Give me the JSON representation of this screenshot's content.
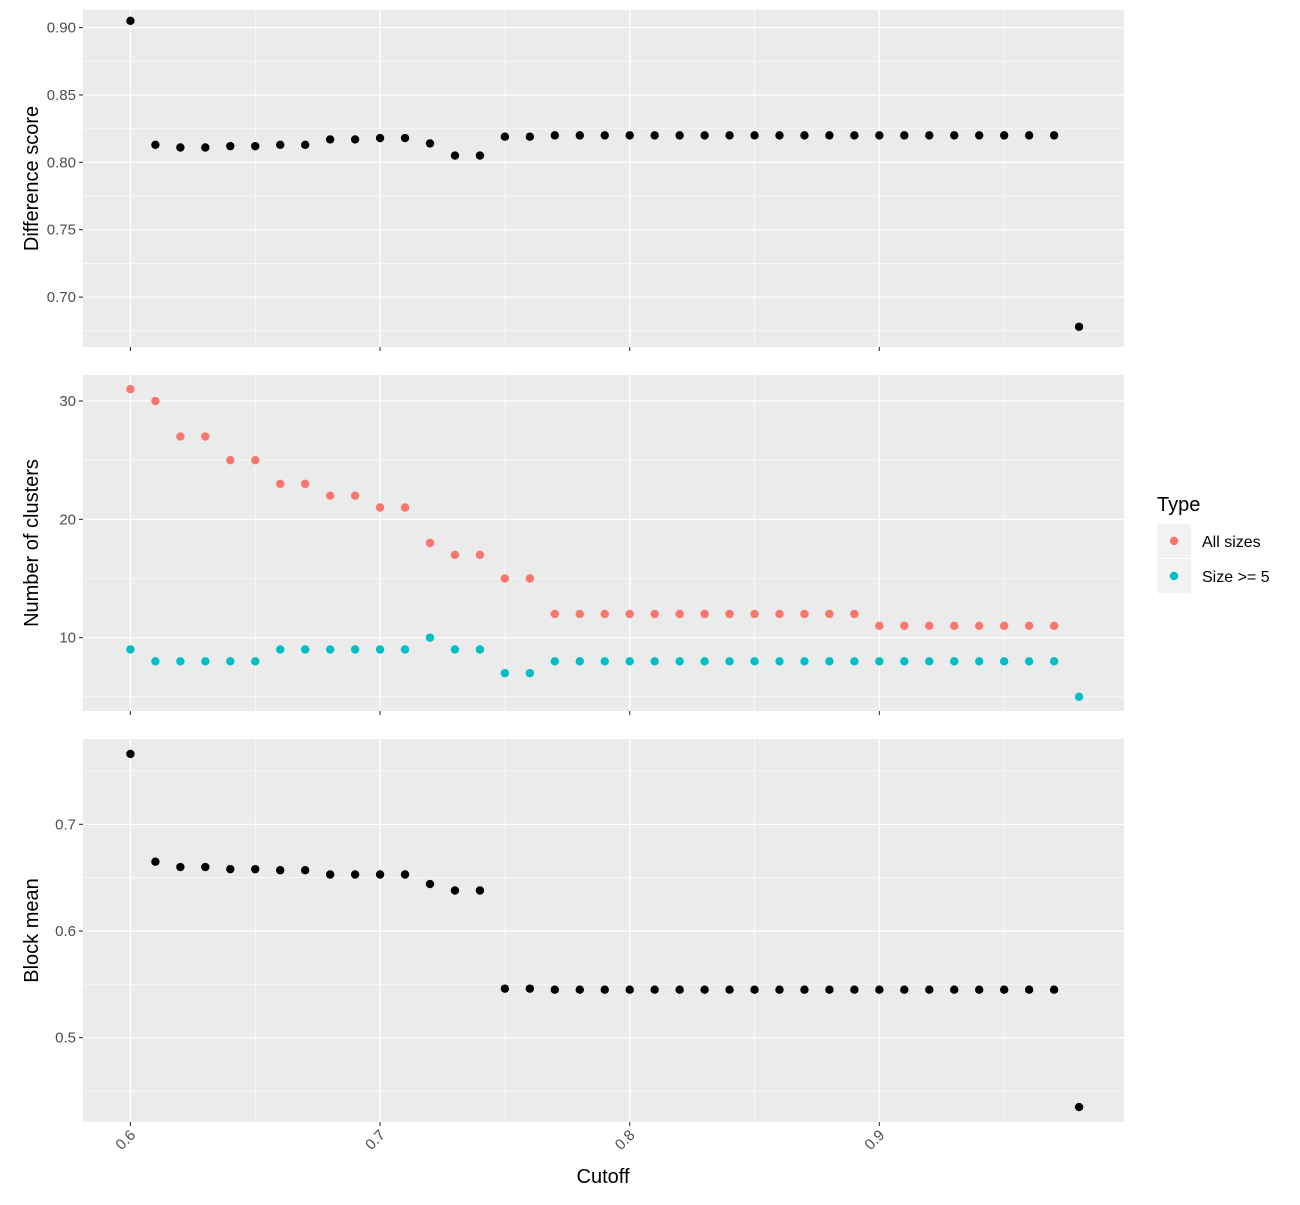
{
  "chart_data": {
    "type": "scatter",
    "layout": "three vertically stacked panels with shared x axis",
    "xlabel": "Cutoff",
    "x_ticks": [
      "0.6",
      "0.7",
      "0.8",
      "0.9"
    ],
    "x_range": [
      0.581,
      0.998
    ],
    "grid": true,
    "legend": {
      "title": "Type",
      "placement": "right",
      "entries": [
        {
          "label": "All sizes",
          "color": "#F8766D"
        },
        {
          "label": "Size >= 5",
          "color": "#00BFC4"
        }
      ]
    },
    "panels": [
      {
        "ylabel": "Difference score",
        "y_ticks": [
          "0.70",
          "0.75",
          "0.80",
          "0.85",
          "0.90"
        ],
        "ylim": [
          0.663,
          0.913
        ],
        "series": [
          {
            "color": "#000000",
            "points": [
              [
                0.6,
                0.905
              ],
              [
                0.61,
                0.813
              ],
              [
                0.62,
                0.811
              ],
              [
                0.63,
                0.811
              ],
              [
                0.64,
                0.812
              ],
              [
                0.65,
                0.812
              ],
              [
                0.66,
                0.813
              ],
              [
                0.67,
                0.813
              ],
              [
                0.68,
                0.817
              ],
              [
                0.69,
                0.817
              ],
              [
                0.7,
                0.818
              ],
              [
                0.71,
                0.818
              ],
              [
                0.72,
                0.814
              ],
              [
                0.73,
                0.805
              ],
              [
                0.74,
                0.805
              ],
              [
                0.75,
                0.819
              ],
              [
                0.76,
                0.819
              ],
              [
                0.77,
                0.82
              ],
              [
                0.78,
                0.82
              ],
              [
                0.79,
                0.82
              ],
              [
                0.8,
                0.82
              ],
              [
                0.81,
                0.82
              ],
              [
                0.82,
                0.82
              ],
              [
                0.83,
                0.82
              ],
              [
                0.84,
                0.82
              ],
              [
                0.85,
                0.82
              ],
              [
                0.86,
                0.82
              ],
              [
                0.87,
                0.82
              ],
              [
                0.88,
                0.82
              ],
              [
                0.89,
                0.82
              ],
              [
                0.9,
                0.82
              ],
              [
                0.91,
                0.82
              ],
              [
                0.92,
                0.82
              ],
              [
                0.93,
                0.82
              ],
              [
                0.94,
                0.82
              ],
              [
                0.95,
                0.82
              ],
              [
                0.96,
                0.82
              ],
              [
                0.97,
                0.82
              ],
              [
                0.98,
                0.678
              ]
            ]
          }
        ]
      },
      {
        "ylabel": "Number of clusters",
        "y_ticks": [
          "10",
          "20",
          "30"
        ],
        "ylim": [
          3.8,
          32.2
        ],
        "series": [
          {
            "name": "All sizes",
            "color": "#F8766D",
            "points": [
              [
                0.6,
                31
              ],
              [
                0.61,
                30
              ],
              [
                0.62,
                27
              ],
              [
                0.63,
                27
              ],
              [
                0.64,
                25
              ],
              [
                0.65,
                25
              ],
              [
                0.66,
                23
              ],
              [
                0.67,
                23
              ],
              [
                0.68,
                22
              ],
              [
                0.69,
                22
              ],
              [
                0.7,
                21
              ],
              [
                0.71,
                21
              ],
              [
                0.72,
                18
              ],
              [
                0.73,
                17
              ],
              [
                0.74,
                17
              ],
              [
                0.75,
                15
              ],
              [
                0.76,
                15
              ],
              [
                0.77,
                12
              ],
              [
                0.78,
                12
              ],
              [
                0.79,
                12
              ],
              [
                0.8,
                12
              ],
              [
                0.81,
                12
              ],
              [
                0.82,
                12
              ],
              [
                0.83,
                12
              ],
              [
                0.84,
                12
              ],
              [
                0.85,
                12
              ],
              [
                0.86,
                12
              ],
              [
                0.87,
                12
              ],
              [
                0.88,
                12
              ],
              [
                0.89,
                12
              ],
              [
                0.9,
                11
              ],
              [
                0.91,
                11
              ],
              [
                0.92,
                11
              ],
              [
                0.93,
                11
              ],
              [
                0.94,
                11
              ],
              [
                0.95,
                11
              ],
              [
                0.96,
                11
              ],
              [
                0.97,
                11
              ]
            ]
          },
          {
            "name": "Size >= 5",
            "color": "#00BFC4",
            "points": [
              [
                0.6,
                9
              ],
              [
                0.61,
                8
              ],
              [
                0.62,
                8
              ],
              [
                0.63,
                8
              ],
              [
                0.64,
                8
              ],
              [
                0.65,
                8
              ],
              [
                0.66,
                9
              ],
              [
                0.67,
                9
              ],
              [
                0.68,
                9
              ],
              [
                0.69,
                9
              ],
              [
                0.7,
                9
              ],
              [
                0.71,
                9
              ],
              [
                0.72,
                10
              ],
              [
                0.73,
                9
              ],
              [
                0.74,
                9
              ],
              [
                0.75,
                7
              ],
              [
                0.76,
                7
              ],
              [
                0.77,
                8
              ],
              [
                0.78,
                8
              ],
              [
                0.79,
                8
              ],
              [
                0.8,
                8
              ],
              [
                0.81,
                8
              ],
              [
                0.82,
                8
              ],
              [
                0.83,
                8
              ],
              [
                0.84,
                8
              ],
              [
                0.85,
                8
              ],
              [
                0.86,
                8
              ],
              [
                0.87,
                8
              ],
              [
                0.88,
                8
              ],
              [
                0.89,
                8
              ],
              [
                0.9,
                8
              ],
              [
                0.91,
                8
              ],
              [
                0.92,
                8
              ],
              [
                0.93,
                8
              ],
              [
                0.94,
                8
              ],
              [
                0.95,
                8
              ],
              [
                0.96,
                8
              ],
              [
                0.97,
                8
              ],
              [
                0.98,
                5
              ]
            ]
          }
        ]
      },
      {
        "ylabel": "Block mean",
        "y_ticks": [
          "0.5",
          "0.6",
          "0.7"
        ],
        "ylim": [
          0.421,
          0.78
        ],
        "series": [
          {
            "color": "#000000",
            "points": [
              [
                0.6,
                0.766
              ],
              [
                0.61,
                0.665
              ],
              [
                0.62,
                0.66
              ],
              [
                0.63,
                0.66
              ],
              [
                0.64,
                0.658
              ],
              [
                0.65,
                0.658
              ],
              [
                0.66,
                0.657
              ],
              [
                0.67,
                0.657
              ],
              [
                0.68,
                0.653
              ],
              [
                0.69,
                0.653
              ],
              [
                0.7,
                0.653
              ],
              [
                0.71,
                0.653
              ],
              [
                0.72,
                0.644
              ],
              [
                0.73,
                0.638
              ],
              [
                0.74,
                0.638
              ],
              [
                0.75,
                0.546
              ],
              [
                0.76,
                0.546
              ],
              [
                0.77,
                0.545
              ],
              [
                0.78,
                0.545
              ],
              [
                0.79,
                0.545
              ],
              [
                0.8,
                0.545
              ],
              [
                0.81,
                0.545
              ],
              [
                0.82,
                0.545
              ],
              [
                0.83,
                0.545
              ],
              [
                0.84,
                0.545
              ],
              [
                0.85,
                0.545
              ],
              [
                0.86,
                0.545
              ],
              [
                0.87,
                0.545
              ],
              [
                0.88,
                0.545
              ],
              [
                0.89,
                0.545
              ],
              [
                0.9,
                0.545
              ],
              [
                0.91,
                0.545
              ],
              [
                0.92,
                0.545
              ],
              [
                0.93,
                0.545
              ],
              [
                0.94,
                0.545
              ],
              [
                0.95,
                0.545
              ],
              [
                0.96,
                0.545
              ],
              [
                0.97,
                0.545
              ],
              [
                0.98,
                0.435
              ]
            ]
          }
        ]
      }
    ]
  }
}
